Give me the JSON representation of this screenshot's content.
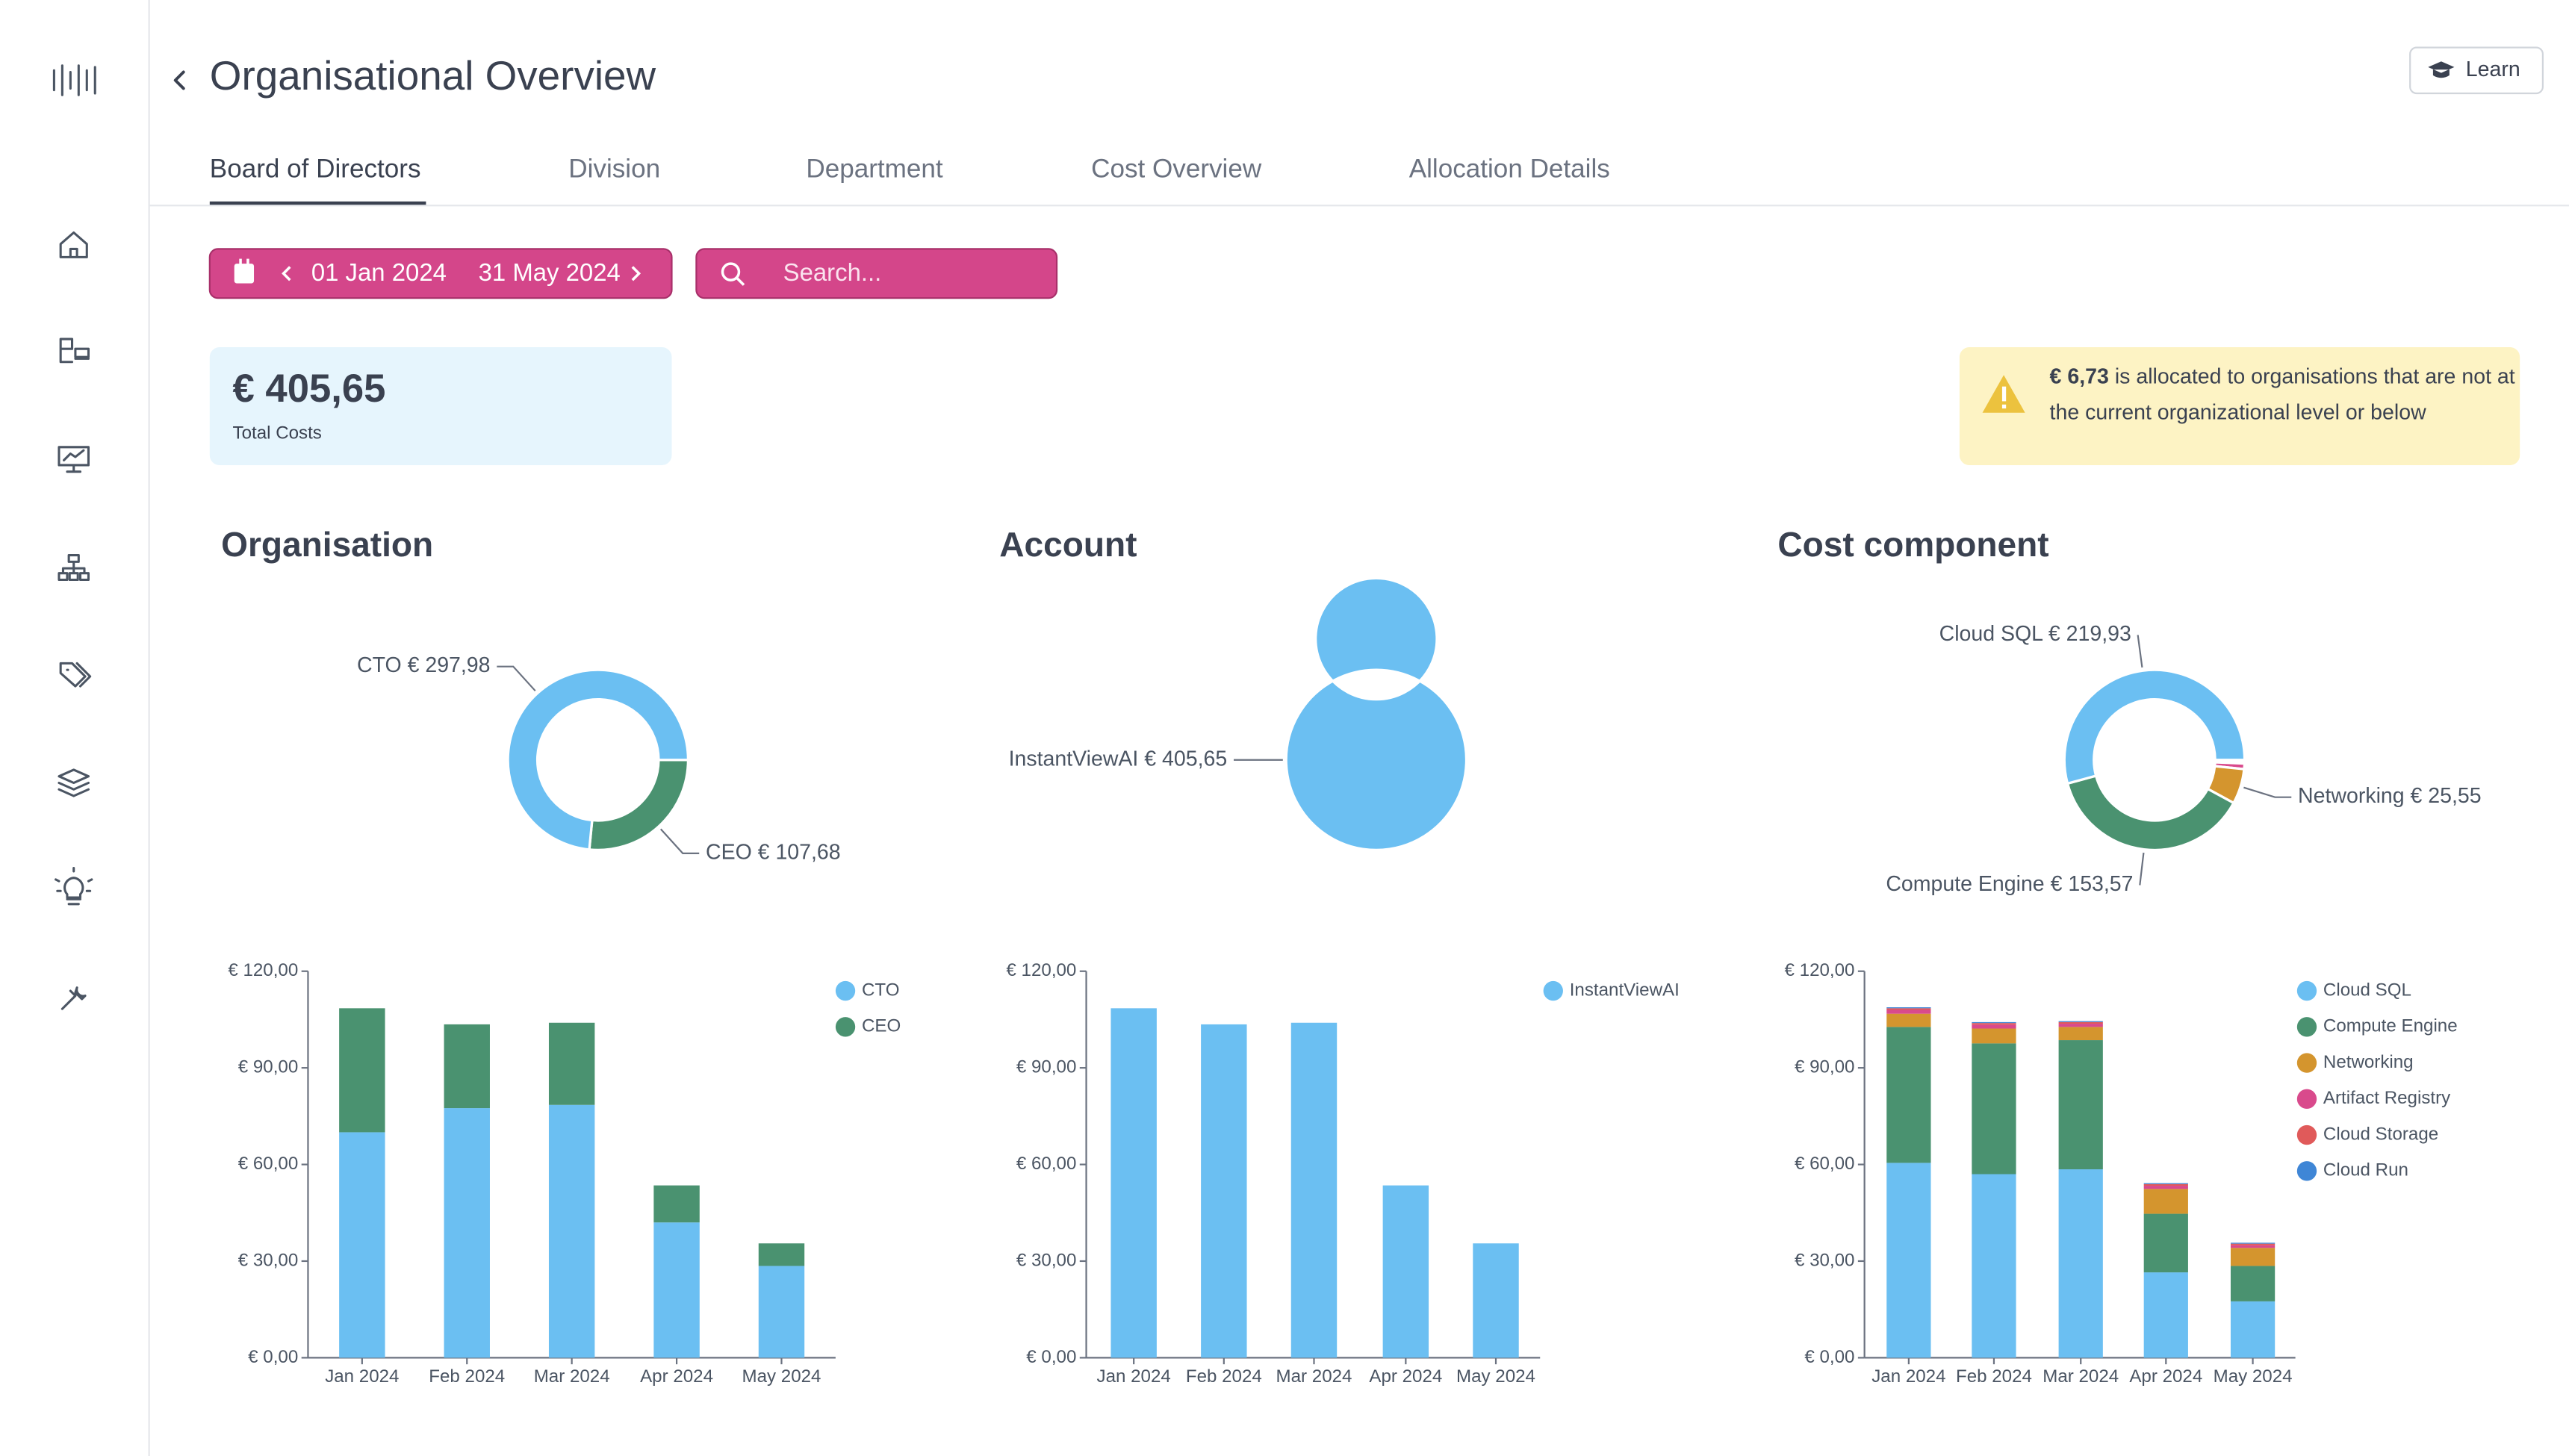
{
  "header": {
    "title": "Organisational Overview",
    "learn": "Learn"
  },
  "tabs": [
    "Board of Directors",
    "Division",
    "Department",
    "Cost Overview",
    "Allocation Details"
  ],
  "filters": {
    "date_from": "01 Jan 2024",
    "date_to": "31 May 2024",
    "search": "Search..."
  },
  "summary": {
    "value": "€ 405,65",
    "label": "Total Costs"
  },
  "notice": {
    "amount": "€ 6,73",
    "text": "is allocated to organisations that are not at the current organizational level or below"
  },
  "charts": [
    {
      "title": "Organisation",
      "donut": {
        "type": "pie",
        "categories": [
          "CEO",
          "CTO"
        ],
        "values": [
          107.68,
          297.98
        ],
        "value_labels": [
          "CEO € 107,68",
          "CTO € 297,98"
        ],
        "colors": [
          "#4a9270",
          "#6bbff2"
        ]
      },
      "bar": {
        "type": "bar",
        "stacked": true,
        "categories": [
          "Jan 2024",
          "Feb 2024",
          "Mar 2024",
          "Apr 2024",
          "May 2024"
        ],
        "series": [
          {
            "name": "CTO",
            "color": "#6bbff2",
            "values": [
              70,
              77.5,
              78.5,
              42,
              28.5
            ]
          },
          {
            "name": "CEO",
            "color": "#4a9270",
            "values": [
              38.5,
              26,
              25.5,
              11.5,
              7
            ]
          }
        ],
        "ylim": [
          0,
          120
        ],
        "yticks": [
          {
            "value": 0,
            "label": "€ 0,00"
          },
          {
            "value": 30,
            "label": "€ 30,00"
          },
          {
            "value": 60,
            "label": "€ 60,00"
          },
          {
            "value": 90,
            "label": "€ 90,00"
          },
          {
            "value": 120,
            "label": "€ 120,00"
          }
        ]
      }
    },
    {
      "title": "Account",
      "donut": {
        "type": "pie",
        "categories": [
          "InstantViewAI"
        ],
        "values": [
          405.65
        ],
        "value_labels": [
          "InstantViewAI € 405,65"
        ],
        "colors": [
          "#6bbff2"
        ]
      },
      "bar": {
        "type": "bar",
        "stacked": true,
        "categories": [
          "Jan 2024",
          "Feb 2024",
          "Mar 2024",
          "Apr 2024",
          "May 2024"
        ],
        "series": [
          {
            "name": "InstantViewAI",
            "color": "#6bbff2",
            "values": [
              108.5,
              103.5,
              104,
              53.5,
              35.5
            ]
          }
        ],
        "ylim": [
          0,
          120
        ],
        "yticks": [
          {
            "value": 0,
            "label": "€ 0,00"
          },
          {
            "value": 30,
            "label": "€ 30,00"
          },
          {
            "value": 60,
            "label": "€ 60,00"
          },
          {
            "value": 90,
            "label": "€ 90,00"
          },
          {
            "value": 120,
            "label": "€ 120,00"
          }
        ]
      }
    },
    {
      "title": "Cost component",
      "donut": {
        "type": "pie",
        "categories": [
          "Cloud Run",
          "Cloud Storage",
          "Artifact Registry",
          "Networking",
          "Compute Engine",
          "Cloud SQL"
        ],
        "values": [
          0.8,
          1.8,
          4,
          25.55,
          153.57,
          219.93
        ],
        "value_labels": [
          null,
          null,
          null,
          "Networking € 25,55",
          "Compute Engine € 153,57",
          "Cloud SQL € 219,93"
        ],
        "colors": [
          "#2c4a6e",
          "#e05a5a",
          "#d94a8c",
          "#d4952e",
          "#4a9270",
          "#6bbff2"
        ]
      },
      "bar": {
        "type": "bar",
        "stacked": true,
        "categories": [
          "Jan 2024",
          "Feb 2024",
          "Mar 2024",
          "Apr 2024",
          "May 2024"
        ],
        "series": [
          {
            "name": "Cloud SQL",
            "color": "#6bbff2",
            "values": [
              60.5,
              57,
              58.5,
              26.5,
              17.5
            ]
          },
          {
            "name": "Compute Engine",
            "color": "#4a9270",
            "values": [
              42.2,
              40.6,
              40.1,
              18.2,
              11
            ]
          },
          {
            "name": "Networking",
            "color": "#d4952e",
            "values": [
              4.1,
              4.6,
              4.1,
              7.7,
              5.6
            ]
          },
          {
            "name": "Artifact Registry",
            "color": "#d94a8c",
            "values": [
              1.2,
              1.2,
              1,
              1,
              0.8
            ]
          },
          {
            "name": "Cloud Storage",
            "color": "#e05a5a",
            "values": [
              0.5,
              0.5,
              0.5,
              0.5,
              0.5
            ]
          },
          {
            "name": "Cloud Run",
            "color": "#3f86d6",
            "values": [
              0.3,
              0.3,
              0.3,
              0.3,
              0.3
            ]
          }
        ],
        "ylim": [
          0,
          120
        ],
        "yticks": [
          {
            "value": 0,
            "label": "€ 0,00"
          },
          {
            "value": 30,
            "label": "€ 30,00"
          },
          {
            "value": 60,
            "label": "€ 60,00"
          },
          {
            "value": 90,
            "label": "€ 90,00"
          },
          {
            "value": 120,
            "label": "€ 120,00"
          }
        ]
      }
    }
  ]
}
